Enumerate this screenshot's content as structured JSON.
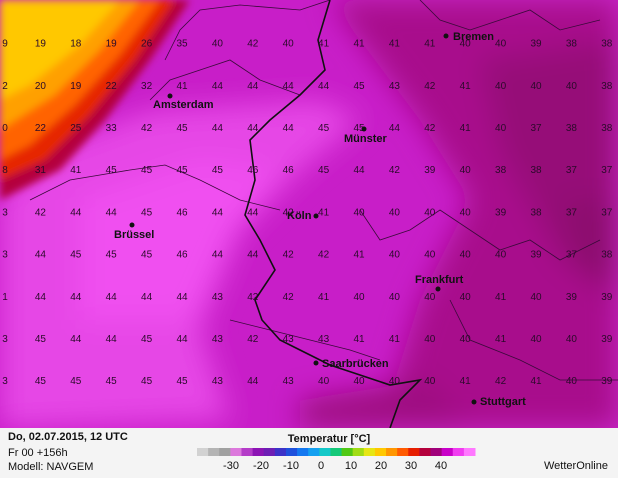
{
  "header": {
    "date": "Do, 02.07.2015, 12 UTC",
    "run": "Fr 00 +156h",
    "model": "Modell: NAVGEM",
    "brand": "WetterOnline"
  },
  "legend": {
    "title": "Temperatur [°C]",
    "ticks": [
      -30,
      -20,
      -10,
      0,
      10,
      20,
      30,
      40
    ]
  },
  "cities": {
    "bremen": "Bremen",
    "amsterdam": "Amsterdam",
    "muenster": "Münster",
    "koeln": "Köln",
    "bruessel": "Brüssel",
    "frankfurt": "Frankfurt",
    "saarbruecken": "Saarbrücken",
    "stuttgart": "Stuttgart"
  },
  "grid": {
    "rows": [
      [
        9,
        19,
        18,
        19,
        26,
        35,
        40,
        42,
        40,
        41,
        41,
        41,
        41,
        40,
        40,
        39,
        38,
        38
      ],
      [
        2,
        20,
        19,
        22,
        32,
        41,
        44,
        44,
        44,
        44,
        45,
        43,
        42,
        41,
        40,
        40,
        40,
        38
      ],
      [
        0,
        22,
        25,
        33,
        42,
        45,
        44,
        44,
        44,
        45,
        45,
        44,
        42,
        41,
        40,
        37,
        38,
        38
      ],
      [
        8,
        31,
        41,
        45,
        45,
        45,
        45,
        46,
        46,
        45,
        44,
        42,
        39,
        40,
        38,
        38,
        37,
        37
      ],
      [
        3,
        42,
        44,
        44,
        45,
        46,
        44,
        44,
        42,
        41,
        40,
        40,
        40,
        40,
        39,
        38,
        37,
        37
      ],
      [
        3,
        44,
        45,
        45,
        45,
        46,
        44,
        44,
        42,
        42,
        41,
        40,
        40,
        40,
        40,
        39,
        37,
        38
      ],
      [
        1,
        44,
        44,
        44,
        44,
        44,
        43,
        42,
        42,
        41,
        40,
        40,
        40,
        40,
        41,
        40,
        39,
        39
      ],
      [
        3,
        45,
        44,
        44,
        45,
        44,
        43,
        42,
        43,
        43,
        41,
        41,
        40,
        40,
        41,
        40,
        40,
        39
      ],
      [
        3,
        45,
        45,
        45,
        45,
        45,
        43,
        44,
        43,
        40,
        40,
        40,
        40,
        41,
        42,
        41,
        40,
        39
      ]
    ]
  }
}
